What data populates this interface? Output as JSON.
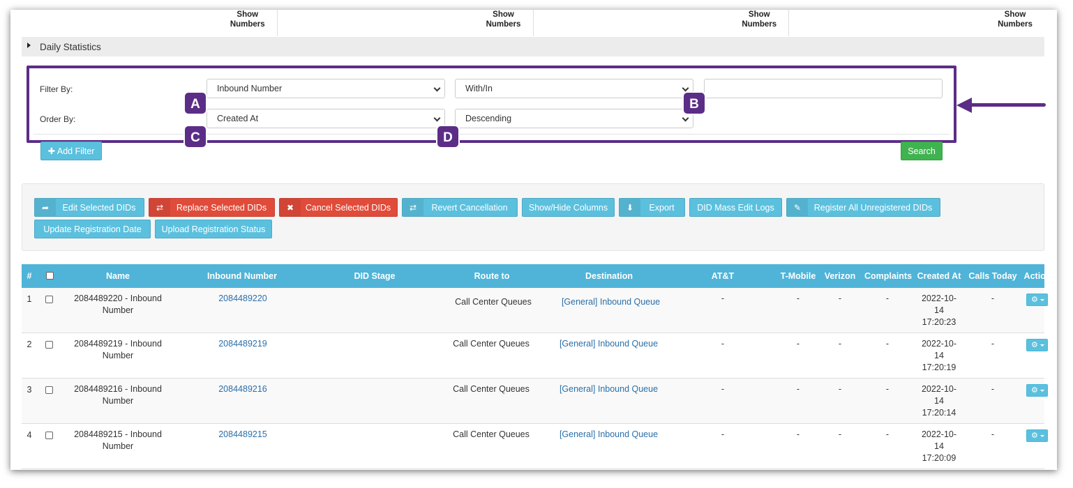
{
  "show_numbers_label": "Show Numbers",
  "show_numbers_cells": [
    "Show\nNumbers",
    "Show\nNumbers",
    "Show\nNumbers",
    "Show\nNumbers"
  ],
  "daily_statistics": "Daily Statistics",
  "filter": {
    "filter_by_label": "Filter By:",
    "order_by_label": "Order By:",
    "filter_field": "Inbound Number",
    "filter_operator": "With/In",
    "filter_value": "",
    "order_field": "Created At",
    "order_direction": "Descending",
    "add_filter": "Add Filter",
    "search": "Search"
  },
  "callouts": {
    "a": "A",
    "b": "B",
    "c": "C",
    "d": "D"
  },
  "accent_color": "#5c2d87",
  "actions": {
    "edit": "Edit Selected DIDs",
    "replace": "Replace Selected DIDs",
    "cancel": "Cancel Selected DIDs",
    "revert": "Revert Cancellation",
    "show_hide": "Show/Hide Columns",
    "export": "Export",
    "mass_edit_logs": "DID Mass Edit Logs",
    "register_all": "Register All Unregistered DIDs",
    "update_reg_date": "Update Registration Date",
    "upload_reg_status": "Upload Registration Status"
  },
  "table": {
    "headers": {
      "num": "#",
      "name": "Name",
      "inbound": "Inbound Number",
      "stage": "DID Stage",
      "route": "Route to",
      "destination": "Destination",
      "att": "AT&T",
      "tmobile": "T-Mobile",
      "verizon": "Verizon",
      "complaints": "Complaints",
      "created": "Created At",
      "calls_today": "Calls Today",
      "action": "Action"
    },
    "rows": [
      {
        "num": "1",
        "name_a": "2084489220 - Inbound",
        "name_b": "Number",
        "inbound": "2084489220",
        "route": "Call Center Queues",
        "destination": "[General] Inbound Queue",
        "att": "-",
        "tmobile": "-",
        "verizon": "-",
        "complaints": "-",
        "created_a": "2022-10-",
        "created_b": "14",
        "created_c": "17:20:23",
        "calls_today": "-"
      },
      {
        "num": "2",
        "name_a": "2084489219 - Inbound",
        "name_b": "Number",
        "inbound": "2084489219",
        "route": "Call Center Queues",
        "destination": "[General] Inbound Queue",
        "att": "-",
        "tmobile": "-",
        "verizon": "-",
        "complaints": "-",
        "created_a": "2022-10-",
        "created_b": "14",
        "created_c": "17:20:19",
        "calls_today": "-"
      },
      {
        "num": "3",
        "name_a": "2084489216 - Inbound",
        "name_b": "Number",
        "inbound": "2084489216",
        "route": "Call Center Queues",
        "destination": "[General] Inbound Queue",
        "att": "-",
        "tmobile": "-",
        "verizon": "-",
        "complaints": "-",
        "created_a": "2022-10-",
        "created_b": "14",
        "created_c": "17:20:14",
        "calls_today": "-"
      },
      {
        "num": "4",
        "name_a": "2084489215 - Inbound",
        "name_b": "Number",
        "inbound": "2084489215",
        "route": "Call Center Queues",
        "destination": "[General] Inbound Queue",
        "att": "-",
        "tmobile": "-",
        "verizon": "-",
        "complaints": "-",
        "created_a": "2022-10-",
        "created_b": "14",
        "created_c": "17:20:09",
        "calls_today": "-"
      }
    ]
  }
}
